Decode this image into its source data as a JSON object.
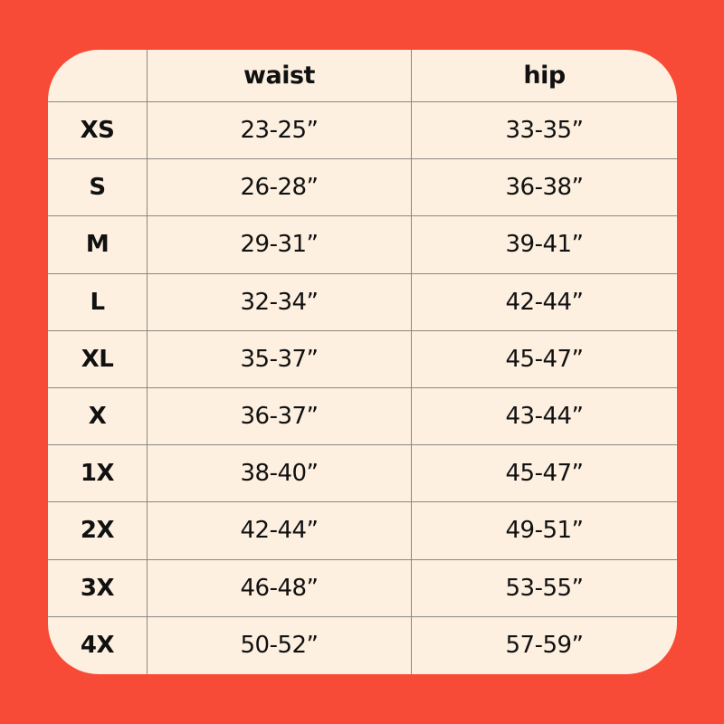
{
  "colors": {
    "background": "#f84b37",
    "card": "#fdf0e0",
    "grid_lines": "#8c8782",
    "text": "#111111"
  },
  "table": {
    "headers": [
      "",
      "waist",
      "hip"
    ],
    "rows": [
      {
        "size": "XS",
        "waist": "23-25”",
        "hip": "33-35”"
      },
      {
        "size": "S",
        "waist": "26-28”",
        "hip": "36-38”"
      },
      {
        "size": "M",
        "waist": "29-31”",
        "hip": "39-41”"
      },
      {
        "size": "L",
        "waist": "32-34”",
        "hip": "42-44”"
      },
      {
        "size": "XL",
        "waist": "35-37”",
        "hip": "45-47”"
      },
      {
        "size": "X",
        "waist": "36-37”",
        "hip": "43-44”"
      },
      {
        "size": "1X",
        "waist": "38-40”",
        "hip": "45-47”"
      },
      {
        "size": "2X",
        "waist": "42-44”",
        "hip": "49-51”"
      },
      {
        "size": "3X",
        "waist": "46-48”",
        "hip": "53-55”"
      },
      {
        "size": "4X",
        "waist": "50-52”",
        "hip": "57-59”"
      }
    ]
  }
}
